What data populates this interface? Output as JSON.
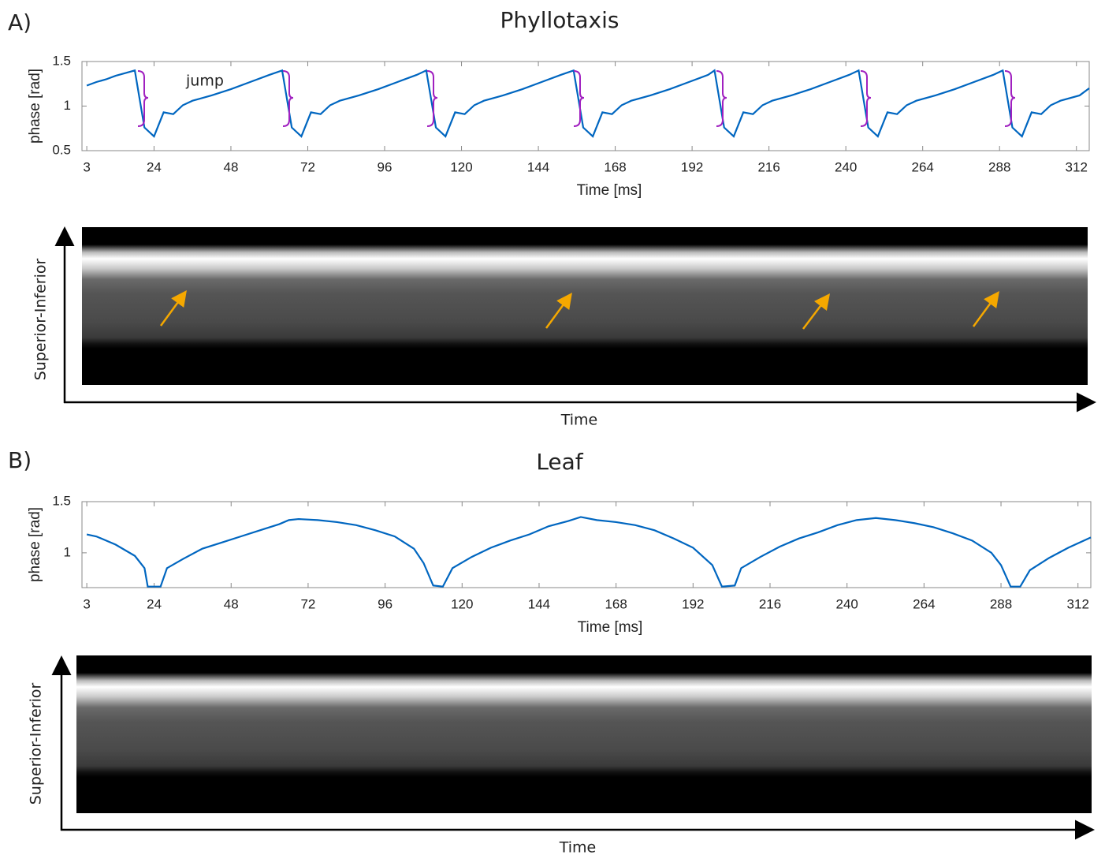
{
  "chart_data": [
    {
      "type": "line",
      "panel_label": "A)",
      "title": "Phyllotaxis",
      "annotation": "jump",
      "xlabel": "Time [ms]",
      "ylabel": "phase [rad]",
      "color": "#0066c0",
      "xlim": [
        1.5,
        316
      ],
      "ylim": [
        0.5,
        1.5
      ],
      "xticks": [
        3,
        24,
        48,
        72,
        96,
        120,
        144,
        168,
        192,
        216,
        240,
        264,
        288,
        312
      ],
      "yticks": [
        0.5,
        1,
        1.5
      ],
      "x": [
        3,
        6,
        9,
        12,
        15,
        18,
        21,
        24,
        27,
        30,
        33,
        36,
        42,
        48,
        54,
        60,
        64,
        67,
        70,
        73,
        76,
        79,
        82,
        88,
        94,
        100,
        106,
        109,
        112,
        115,
        118,
        121,
        124,
        127,
        133,
        139,
        145,
        151,
        155,
        158,
        161,
        164,
        167,
        170,
        173,
        179,
        185,
        191,
        197,
        199,
        202,
        205,
        208,
        211,
        214,
        217,
        223,
        229,
        235,
        241,
        244,
        247,
        250,
        253,
        256,
        259,
        262,
        268,
        274,
        280,
        286,
        289,
        292,
        295,
        298,
        301,
        304,
        307,
        313,
        316
      ],
      "values": [
        1.23,
        1.27,
        1.3,
        1.34,
        1.37,
        1.4,
        0.76,
        0.66,
        0.93,
        0.91,
        1.01,
        1.06,
        1.12,
        1.19,
        1.27,
        1.35,
        1.4,
        0.76,
        0.66,
        0.93,
        0.91,
        1.01,
        1.06,
        1.12,
        1.19,
        1.27,
        1.35,
        1.4,
        0.76,
        0.66,
        0.93,
        0.91,
        1.01,
        1.06,
        1.12,
        1.19,
        1.27,
        1.35,
        1.4,
        0.76,
        0.66,
        0.93,
        0.91,
        1.01,
        1.06,
        1.12,
        1.19,
        1.27,
        1.35,
        1.4,
        0.76,
        0.66,
        0.93,
        0.91,
        1.01,
        1.06,
        1.12,
        1.19,
        1.27,
        1.35,
        1.4,
        0.76,
        0.66,
        0.93,
        0.91,
        1.01,
        1.06,
        1.12,
        1.19,
        1.27,
        1.35,
        1.4,
        0.76,
        0.66,
        0.93,
        0.91,
        1.01,
        1.06,
        1.12,
        1.2
      ]
    },
    {
      "type": "line",
      "panel_label": "B)",
      "title": "Leaf",
      "xlabel": "Time [ms]",
      "ylabel": "phase [rad]",
      "color": "#0066c0",
      "xlim": [
        1.5,
        316
      ],
      "ylim": [
        0.66,
        1.5
      ],
      "xticks": [
        3,
        24,
        48,
        72,
        96,
        120,
        144,
        168,
        192,
        216,
        240,
        264,
        288,
        312
      ],
      "yticks": [
        1,
        1.5
      ],
      "x": [
        3,
        6,
        12,
        18,
        21,
        22,
        26,
        28,
        33,
        39,
        45,
        51,
        57,
        63,
        66,
        69,
        75,
        81,
        87,
        93,
        99,
        105,
        108,
        111,
        114,
        117,
        123,
        129,
        135,
        141,
        147,
        153,
        157,
        162,
        168,
        174,
        180,
        186,
        192,
        198,
        201,
        205,
        207,
        213,
        219,
        225,
        231,
        237,
        243,
        249,
        255,
        261,
        267,
        273,
        279,
        285,
        288,
        291,
        294,
        297,
        303,
        309,
        316
      ],
      "values": [
        1.18,
        1.16,
        1.08,
        0.97,
        0.85,
        0.67,
        0.67,
        0.85,
        0.94,
        1.04,
        1.1,
        1.16,
        1.22,
        1.28,
        1.32,
        1.33,
        1.32,
        1.3,
        1.27,
        1.22,
        1.16,
        1.04,
        0.9,
        0.68,
        0.67,
        0.85,
        0.96,
        1.05,
        1.12,
        1.18,
        1.26,
        1.31,
        1.35,
        1.32,
        1.3,
        1.27,
        1.22,
        1.14,
        1.05,
        0.88,
        0.67,
        0.68,
        0.85,
        0.96,
        1.06,
        1.14,
        1.2,
        1.27,
        1.32,
        1.34,
        1.32,
        1.29,
        1.25,
        1.19,
        1.12,
        1.0,
        0.88,
        0.67,
        0.67,
        0.83,
        0.95,
        1.05,
        1.15
      ]
    }
  ],
  "images": [
    {
      "ylabel": "Superior-Inferior",
      "xlabel": "Time"
    },
    {
      "ylabel": "Superior-Inferior",
      "xlabel": "Time"
    }
  ]
}
